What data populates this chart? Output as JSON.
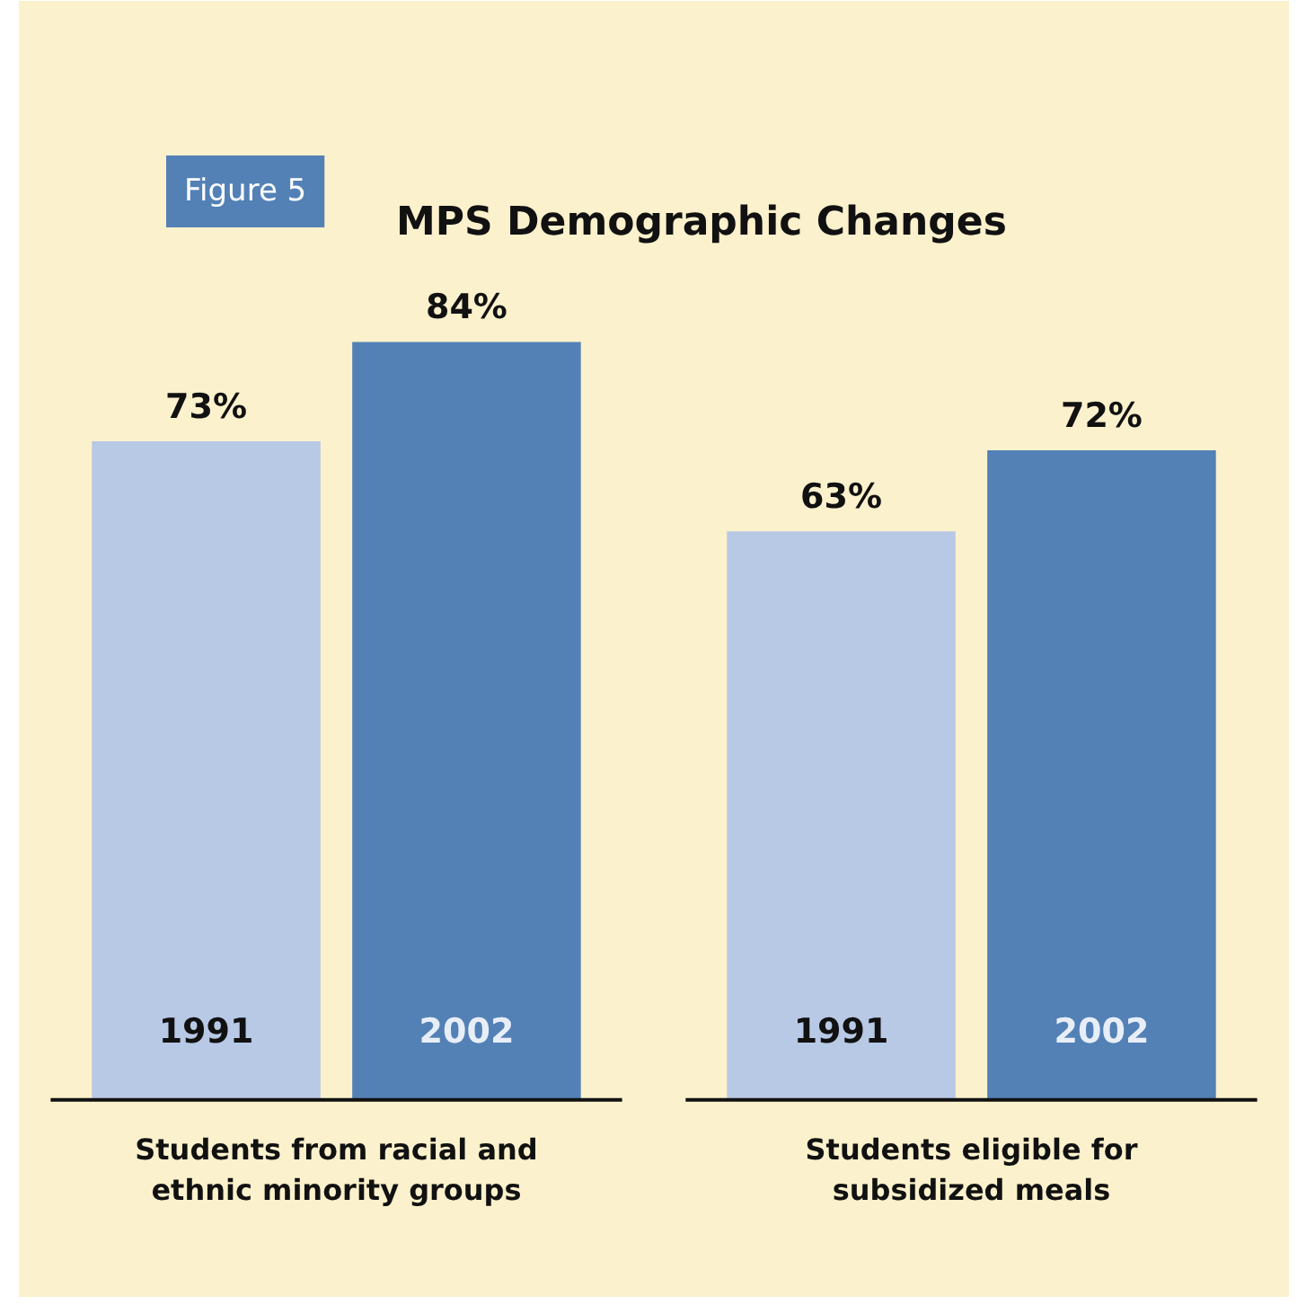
{
  "chart_data": {
    "type": "bar",
    "title": "MPS Demographic Changes",
    "categories": [
      "Students from racial and ethnic minority groups",
      "Students eligible for subsidized meals"
    ],
    "series": [
      {
        "name": "1991",
        "color": "#b8c9e6",
        "values": [
          73,
          63
        ],
        "value_labels": [
          "73%",
          "63%"
        ]
      },
      {
        "name": "2002",
        "color": "#5381b6",
        "values": [
          84,
          72
        ],
        "value_labels": [
          "84%",
          "72%"
        ]
      }
    ],
    "annotations": [
      "Figure 5"
    ]
  }
}
